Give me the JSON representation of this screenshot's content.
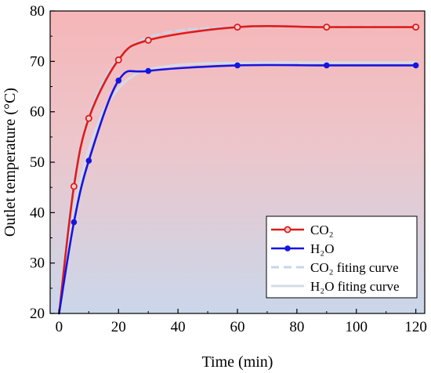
{
  "chart_data": {
    "type": "line",
    "xlabel": "Time (min)",
    "ylabel": "Outlet temperature (°C)",
    "xlim": [
      -3,
      123
    ],
    "ylim": [
      20,
      80
    ],
    "xticks": [
      0,
      20,
      40,
      60,
      80,
      100,
      120
    ],
    "yticks": [
      20,
      30,
      40,
      50,
      60,
      70,
      80
    ],
    "grid": false,
    "background": "vertical gradient from light red (top) to light blue (bottom)",
    "legend_position": "bottom-right",
    "series": [
      {
        "name": "CO₂",
        "style": "solid line with open circle markers",
        "color": "#e01b1b",
        "x": [
          0,
          5,
          10,
          20,
          30,
          60,
          90,
          120
        ],
        "y": [
          20,
          45.2,
          58.7,
          70.3,
          74.2,
          76.8,
          76.8,
          76.8
        ]
      },
      {
        "name": "H₂O",
        "style": "solid line with filled circle markers",
        "color": "#1515e0",
        "x": [
          0,
          5,
          10,
          20,
          30,
          60,
          90,
          120
        ],
        "y": [
          20,
          38.1,
          50.3,
          66.2,
          68.1,
          69.2,
          69.2,
          69.2
        ]
      },
      {
        "name": "CO₂ fiting curve",
        "style": "dashed line",
        "color": "#c8d6e8",
        "x": [
          0,
          2.5,
          5,
          7.5,
          10,
          15,
          20,
          25,
          30,
          40,
          50,
          60,
          80,
          100,
          120
        ],
        "y": [
          21,
          36,
          46.5,
          54,
          59.5,
          66.3,
          70.6,
          73.2,
          74.8,
          76.1,
          76.6,
          76.8,
          76.9,
          76.9,
          76.9
        ]
      },
      {
        "name": "H₂O fiting curve",
        "style": "solid line",
        "color": "#d4dce8",
        "x": [
          0,
          2.5,
          5,
          7.5,
          10,
          15,
          20,
          25,
          30,
          40,
          50,
          60,
          80,
          100,
          120
        ],
        "y": [
          21,
          31.5,
          40,
          47,
          52.5,
          60.2,
          64.6,
          67.2,
          68.4,
          69.3,
          69.6,
          69.7,
          69.8,
          69.8,
          69.8
        ]
      }
    ]
  }
}
